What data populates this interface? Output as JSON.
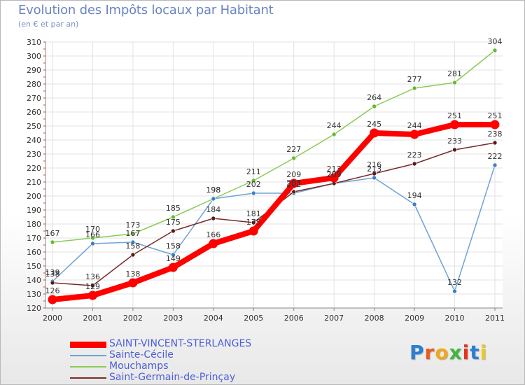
{
  "title": "Evolution des Impôts locaux par Habitant",
  "subtitle": "(en € et par an)",
  "logo": {
    "letters": [
      "P",
      "r",
      "o",
      "x",
      "i",
      "t",
      "i"
    ],
    "colors": [
      "#2a7fd4",
      "#e85a1e",
      "#f0a81a",
      "#3db83d",
      "#e8301e",
      "#2a7fd4",
      "#f0c81a"
    ]
  },
  "chart_data": {
    "type": "line",
    "title": "Evolution des Impôts locaux par Habitant",
    "subtitle": "(en € et par an)",
    "x": [
      "2000",
      "2001",
      "2002",
      "2003",
      "2004",
      "2005",
      "2006",
      "2007",
      "2008",
      "2009",
      "2010",
      "2011"
    ],
    "ylim": [
      120,
      310
    ],
    "yticks": [
      120,
      130,
      140,
      150,
      160,
      170,
      180,
      190,
      200,
      210,
      220,
      230,
      240,
      250,
      260,
      270,
      280,
      290,
      300,
      310
    ],
    "ytick_labels": [
      "120",
      "130",
      "140",
      "150",
      "160",
      "170",
      "180",
      "190",
      "200",
      "210",
      "220",
      "230",
      "240",
      "250",
      "260",
      "270",
      "280",
      "290",
      "300",
      "310"
    ],
    "grid": true,
    "legend_position": "bottom-left",
    "series": [
      {
        "name": "Mouchamps",
        "color": "#88cc55",
        "marker": "#66b833",
        "values": [
          167,
          170,
          173,
          185,
          198,
          211,
          227,
          244,
          264,
          277,
          281,
          304
        ],
        "labels": [
          "167",
          "170",
          "173",
          "185",
          "198",
          "211",
          "227",
          "244",
          "264",
          "277",
          "281",
          "304"
        ]
      },
      {
        "name": "Sainte-Cécile",
        "color": "#6fa3d4",
        "marker": "#3d7fc4",
        "values": [
          139,
          166,
          167,
          158,
          198,
          202,
          202,
          209,
          213,
          194,
          132,
          222
        ],
        "labels": [
          "139",
          "166",
          "167",
          "158",
          "198",
          "202",
          "202",
          "209",
          "213",
          "194",
          "132",
          "222"
        ]
      },
      {
        "name": "Saint-Germain-de-Prinçay",
        "color": "#7a2a2a",
        "marker": "#5a1a1a",
        "values": [
          138,
          136,
          158,
          175,
          184,
          181,
          203,
          209,
          216,
          223,
          233,
          238
        ],
        "labels": [
          "138",
          "136",
          "158",
          "175",
          "184",
          "181",
          "203",
          "209",
          "216",
          "223",
          "233",
          "238"
        ]
      },
      {
        "name": "SAINT-VINCENT-STERLANGES",
        "color": "#ff0000",
        "marker": "#ff0000",
        "values": [
          126,
          129,
          138,
          149,
          166,
          175,
          209,
          213,
          245,
          244,
          251,
          251
        ],
        "labels": [
          "126",
          "129",
          "138",
          "149",
          "166",
          "175",
          "209",
          "213",
          "245",
          "244",
          "251",
          "251"
        ]
      }
    ],
    "legend": [
      {
        "name": "SAINT-VINCENT-STERLANGES",
        "color": "#ff0000",
        "width": 9
      },
      {
        "name": "Sainte-Cécile",
        "color": "#6fa3d4",
        "width": 2
      },
      {
        "name": "Mouchamps",
        "color": "#88cc55",
        "width": 2
      },
      {
        "name": "Saint-Germain-de-Prinçay",
        "color": "#7a2a2a",
        "width": 2
      }
    ]
  }
}
